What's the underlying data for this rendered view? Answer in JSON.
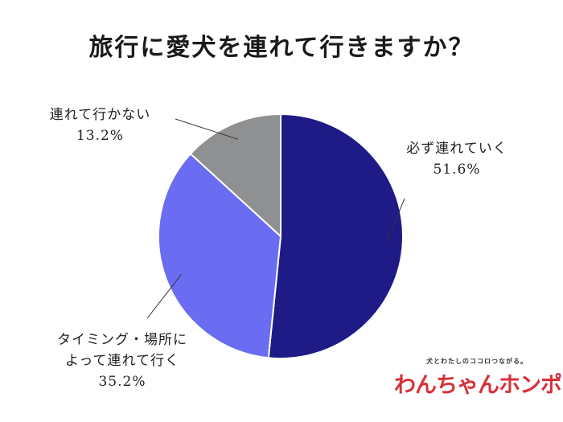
{
  "chart_data": {
    "type": "pie",
    "title": "旅行に愛犬を連れて行きますか？",
    "start_angle_deg": 0,
    "direction": "clockwise",
    "slices": [
      {
        "label": "必ず連れていく",
        "value": 51.6,
        "value_label": "51.6%",
        "color": "#1e1b87"
      },
      {
        "label": "タイミング・場所によって連れて行く",
        "label_lines": [
          "タイミング・場所に",
          "よって連れて行く"
        ],
        "value": 35.2,
        "value_label": "35.2%",
        "color": "#6a6cf2"
      },
      {
        "label": "連れて行かない",
        "value": 13.2,
        "value_label": "13.2%",
        "color": "#8f9092"
      }
    ]
  },
  "logo": {
    "tagline": "犬とわたしのココロつながる。",
    "name": "わんちゃんホンポ"
  }
}
